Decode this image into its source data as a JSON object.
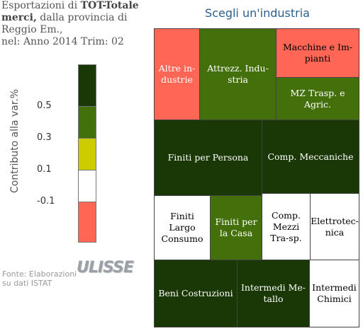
{
  "header": {
    "line1_prefix": "Esportazioni di ",
    "line1_bold": "TOT-Totale merci,",
    "line2": " dalla provincia di Reggio Em.,",
    "line3": "nel: Anno 2014 Trim: 02"
  },
  "legend": {
    "title": "Contributo alla var.%",
    "ticks": [
      "0.5",
      "0.3",
      "0.1",
      "-0.1"
    ],
    "colors": [
      "#1a3806",
      "#44700c",
      "#cccc00",
      "#ffffff",
      "#ff6655"
    ]
  },
  "source": {
    "line1": "Fonte: Elaborazioni",
    "line2": "su dati ISTAT",
    "logo": "ULISSE"
  },
  "treemap": {
    "title": "Scegli un'industria",
    "cells": [
      {
        "label": "Altre in-dustrie",
        "color": "#ff6655",
        "text": "dark"
      },
      {
        "label": "Attrezz. Indu-stria",
        "color": "#44700c",
        "text": "dark"
      },
      {
        "label": "Macchine e Im-pianti",
        "color": "#ff6655",
        "text": "light"
      },
      {
        "label": "MZ Trasp. e Agric.",
        "color": "#44700c",
        "text": "dark"
      },
      {
        "label": "Finiti per Persona",
        "color": "#1a3806",
        "text": "dark"
      },
      {
        "label": "Comp. Meccaniche",
        "color": "#1a3806",
        "text": "dark"
      },
      {
        "label": "Finiti Largo Consumo",
        "color": "#ffffff",
        "text": "light"
      },
      {
        "label": "Finiti per la Casa",
        "color": "#44700c",
        "text": "dark"
      },
      {
        "label": "Comp. Mezzi Tra-sp.",
        "color": "#ffffff",
        "text": "light"
      },
      {
        "label": "Elettrotec-nica",
        "color": "#ffffff",
        "text": "light"
      },
      {
        "label": "Beni Costruzioni",
        "color": "#1a3806",
        "text": "dark"
      },
      {
        "label": "Intermedi Me-tallo",
        "color": "#1a3806",
        "text": "dark"
      },
      {
        "label": "Intermedi Chimici",
        "color": "#ffffff",
        "text": "light"
      }
    ]
  }
}
